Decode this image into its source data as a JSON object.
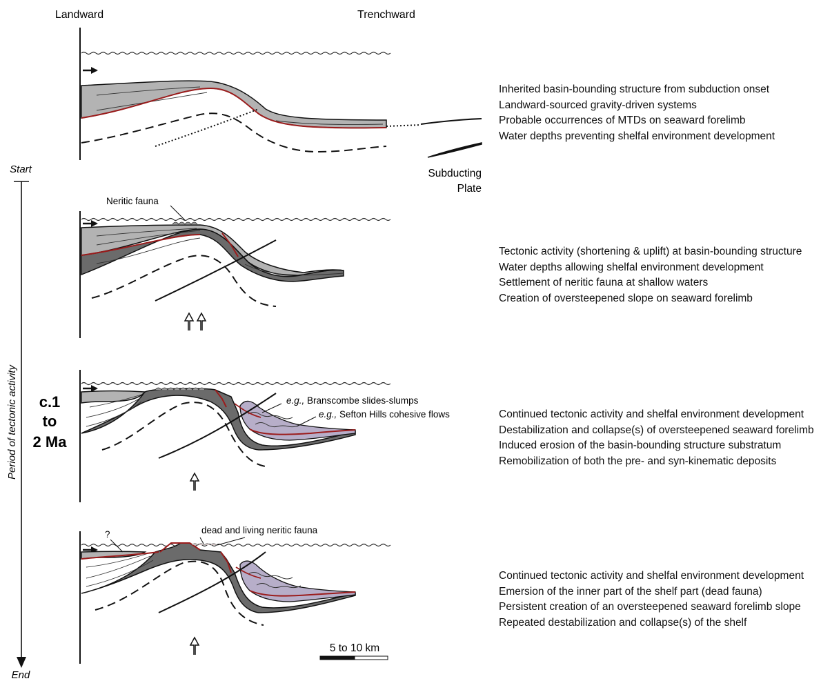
{
  "header": {
    "landward": "Landward",
    "trenchward": "Trenchward"
  },
  "timeline": {
    "start": "Start",
    "end": "End",
    "axis_label": "Period of tectonic activity",
    "duration_line1": "c.1",
    "duration_line2": "to",
    "duration_line3": "2 Ma"
  },
  "panel1": {
    "labels": {
      "subducting_line1": "Subducting",
      "subducting_line2": "Plate"
    },
    "description": [
      "Inherited basin-bounding structure from subduction onset",
      "Landward-sourced gravity-driven systems",
      "Probable occurrences of MTDs on seaward forelimb",
      "Water depths preventing shelfal environment development"
    ]
  },
  "panel2": {
    "labels": {
      "neritic_fauna": "Neritic fauna"
    },
    "description": [
      "Tectonic activity (shortening & uplift) at basin-bounding structure",
      "Water depths allowing shelfal environment development",
      "Settlement of neritic fauna at shallow waters",
      "Creation of oversteepened slope on seaward forelimb"
    ]
  },
  "panel3": {
    "labels": {
      "eg": "e.g.,",
      "branscombe": "Branscombe slides-slumps",
      "sefton": "Sefton Hills cohesive flows"
    },
    "description": [
      "Continued tectonic activity and shelfal environment development",
      "Destabilization and collapse(s) of oversteepened seaward forelimb",
      "Induced erosion of the basin-bounding structure substratum",
      "Remobilization of both the pre- and syn-kinematic deposits"
    ]
  },
  "panel4": {
    "labels": {
      "question": "?",
      "dead_living": "dead and living neritic fauna"
    },
    "description": [
      "Continued tectonic activity and shelfal environment development",
      "Emersion of the inner part of the shelf part (dead fauna)",
      "Persistent creation of an oversteepened seaward forelimb slope",
      "Repeated destabilization and collapse(s) of the shelf"
    ]
  },
  "scale_bar": {
    "label": "5 to 10 km"
  },
  "colors": {
    "light_gray": "#b3b3b3",
    "dark_gray": "#6b6b6b",
    "red": "#9b1c1c",
    "lilac": "#b7aec9"
  }
}
